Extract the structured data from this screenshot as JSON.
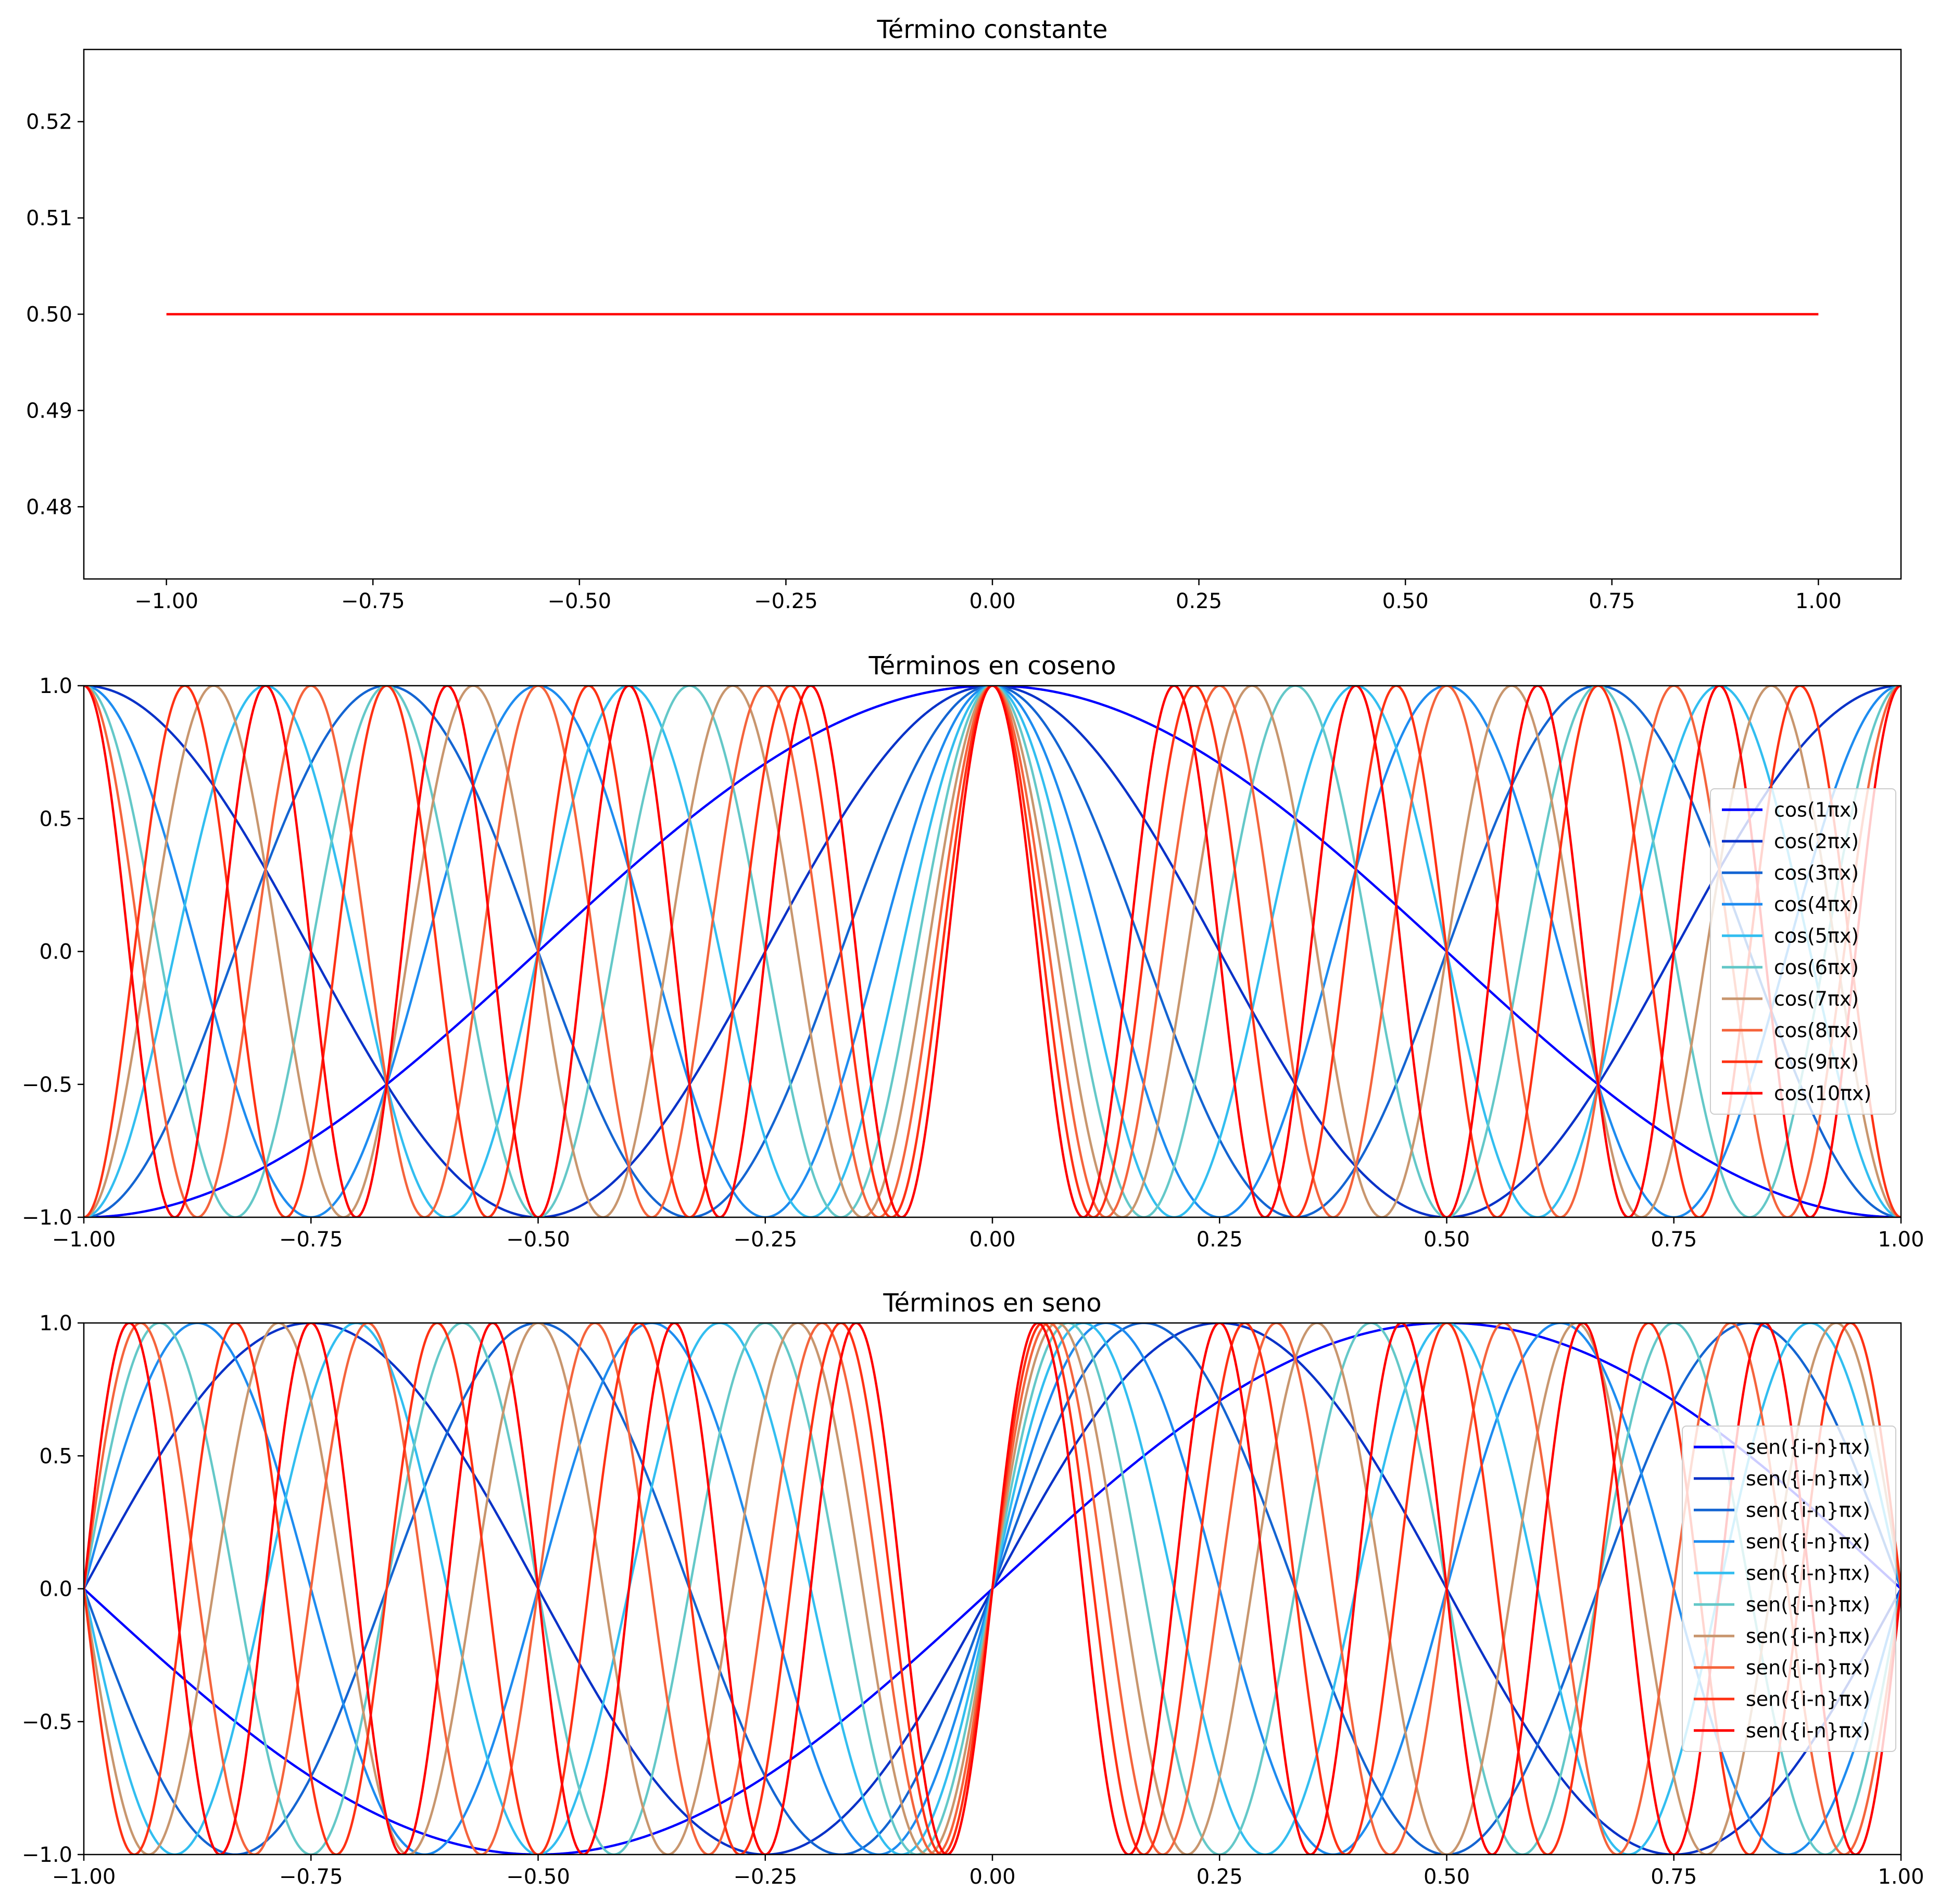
{
  "chart_data": [
    {
      "type": "line",
      "title": "Término constante",
      "xlabel": "",
      "ylabel": "",
      "xlim": [
        -1.1,
        1.1
      ],
      "ylim": [
        0.4725,
        0.5275
      ],
      "x_ticks": [
        -1.0,
        -0.75,
        -0.5,
        -0.25,
        0.0,
        0.25,
        0.5,
        0.75,
        1.0
      ],
      "x_tick_labels": [
        "−1.00",
        "−0.75",
        "−0.50",
        "−0.25",
        "0.00",
        "0.25",
        "0.50",
        "0.75",
        "1.00"
      ],
      "y_ticks": [
        0.48,
        0.49,
        0.5,
        0.51,
        0.52
      ],
      "y_tick_labels": [
        "0.48",
        "0.49",
        "0.50",
        "0.51",
        "0.52"
      ],
      "grid": false,
      "series": [
        {
          "color": "#ff0000",
          "function": "constant",
          "value": 0.5,
          "x_range": [
            -1.0,
            1.0
          ]
        }
      ]
    },
    {
      "type": "line",
      "title": "Términos en coseno",
      "xlabel": "",
      "ylabel": "",
      "xlim": [
        -1.0,
        1.0
      ],
      "ylim": [
        -1.0,
        1.0
      ],
      "x_ticks": [
        -1.0,
        -0.75,
        -0.5,
        -0.25,
        0.0,
        0.25,
        0.5,
        0.75,
        1.0
      ],
      "x_tick_labels": [
        "−1.00",
        "−0.75",
        "−0.50",
        "−0.25",
        "0.00",
        "0.25",
        "0.50",
        "0.75",
        "1.00"
      ],
      "y_ticks": [
        -1.0,
        -0.5,
        0.0,
        0.5,
        1.0
      ],
      "y_tick_labels": [
        "−1.0",
        "−0.5",
        "0.0",
        "0.5",
        "1.0"
      ],
      "grid": false,
      "legend_position": "right",
      "series": [
        {
          "name": "cos(1πx)",
          "function": "cos",
          "n": 1,
          "color": "#0000ff"
        },
        {
          "name": "cos(2πx)",
          "function": "cos",
          "n": 2,
          "color": "#0a32c8"
        },
        {
          "name": "cos(3πx)",
          "function": "cos",
          "n": 3,
          "color": "#1465d2"
        },
        {
          "name": "cos(4πx)",
          "function": "cos",
          "n": 4,
          "color": "#1e8cf0"
        },
        {
          "name": "cos(5πx)",
          "function": "cos",
          "n": 5,
          "color": "#32bef0"
        },
        {
          "name": "cos(6πx)",
          "function": "cos",
          "n": 6,
          "color": "#64c8c8"
        },
        {
          "name": "cos(7πx)",
          "function": "cos",
          "n": 7,
          "color": "#c8966e"
        },
        {
          "name": "cos(8πx)",
          "function": "cos",
          "n": 8,
          "color": "#f5643c"
        },
        {
          "name": "cos(9πx)",
          "function": "cos",
          "n": 9,
          "color": "#ff3214"
        },
        {
          "name": "cos(10πx)",
          "function": "cos",
          "n": 10,
          "color": "#ff0000"
        }
      ]
    },
    {
      "type": "line",
      "title": "Términos en seno",
      "xlabel": "",
      "ylabel": "",
      "xlim": [
        -1.0,
        1.0
      ],
      "ylim": [
        -1.0,
        1.0
      ],
      "x_ticks": [
        -1.0,
        -0.75,
        -0.5,
        -0.25,
        0.0,
        0.25,
        0.5,
        0.75,
        1.0
      ],
      "x_tick_labels": [
        "−1.00",
        "−0.75",
        "−0.50",
        "−0.25",
        "0.00",
        "0.25",
        "0.50",
        "0.75",
        "1.00"
      ],
      "y_ticks": [
        -1.0,
        -0.5,
        0.0,
        0.5,
        1.0
      ],
      "y_tick_labels": [
        "−1.0",
        "−0.5",
        "0.0",
        "0.5",
        "1.0"
      ],
      "grid": false,
      "legend_position": "right",
      "series": [
        {
          "name": "sen({i-n}πx)",
          "function": "sin",
          "n": 1,
          "color": "#0000ff"
        },
        {
          "name": "sen({i-n}πx)",
          "function": "sin",
          "n": 2,
          "color": "#0a32c8"
        },
        {
          "name": "sen({i-n}πx)",
          "function": "sin",
          "n": 3,
          "color": "#1465d2"
        },
        {
          "name": "sen({i-n}πx)",
          "function": "sin",
          "n": 4,
          "color": "#1e8cf0"
        },
        {
          "name": "sen({i-n}πx)",
          "function": "sin",
          "n": 5,
          "color": "#32bef0"
        },
        {
          "name": "sen({i-n}πx)",
          "function": "sin",
          "n": 6,
          "color": "#64c8c8"
        },
        {
          "name": "sen({i-n}πx)",
          "function": "sin",
          "n": 7,
          "color": "#c8966e"
        },
        {
          "name": "sen({i-n}πx)",
          "function": "sin",
          "n": 8,
          "color": "#f5643c"
        },
        {
          "name": "sen({i-n}πx)",
          "function": "sin",
          "n": 9,
          "color": "#ff3214"
        },
        {
          "name": "sen({i-n}πx)",
          "function": "sin",
          "n": 10,
          "color": "#ff0000"
        }
      ]
    }
  ]
}
